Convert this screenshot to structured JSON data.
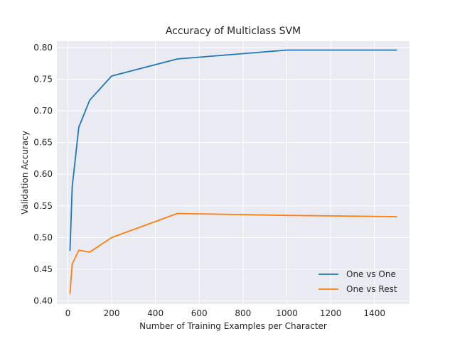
{
  "chart_data": {
    "type": "line",
    "title": "Accuracy of Multiclass SVM",
    "xlabel": "Number of Training Examples per Character",
    "ylabel": "Validation Accuracy",
    "x": [
      10,
      20,
      50,
      100,
      200,
      500,
      1000,
      1500
    ],
    "xlim": [
      -50,
      1560
    ],
    "ylim": [
      0.395,
      0.81
    ],
    "xticks": [
      0,
      200,
      400,
      600,
      800,
      1000,
      1200,
      1400
    ],
    "xtick_labels": [
      "0",
      "200",
      "400",
      "600",
      "800",
      "1000",
      "1200",
      "1400"
    ],
    "yticks": [
      0.4,
      0.45,
      0.5,
      0.55,
      0.6,
      0.65,
      0.7,
      0.75,
      0.8
    ],
    "ytick_labels": [
      "0.40",
      "0.45",
      "0.50",
      "0.55",
      "0.60",
      "0.65",
      "0.70",
      "0.75",
      "0.80"
    ],
    "grid": true,
    "legend_position": "bottom-right",
    "series": [
      {
        "name": "One vs One",
        "color": "#1f77b4",
        "values": [
          0.48,
          0.58,
          0.674,
          0.717,
          0.755,
          0.782,
          0.796,
          0.796
        ]
      },
      {
        "name": "One vs Rest",
        "color": "#ff7f0e",
        "values": [
          0.412,
          0.458,
          0.48,
          0.477,
          0.5,
          0.538,
          0.535,
          0.533
        ]
      }
    ]
  }
}
